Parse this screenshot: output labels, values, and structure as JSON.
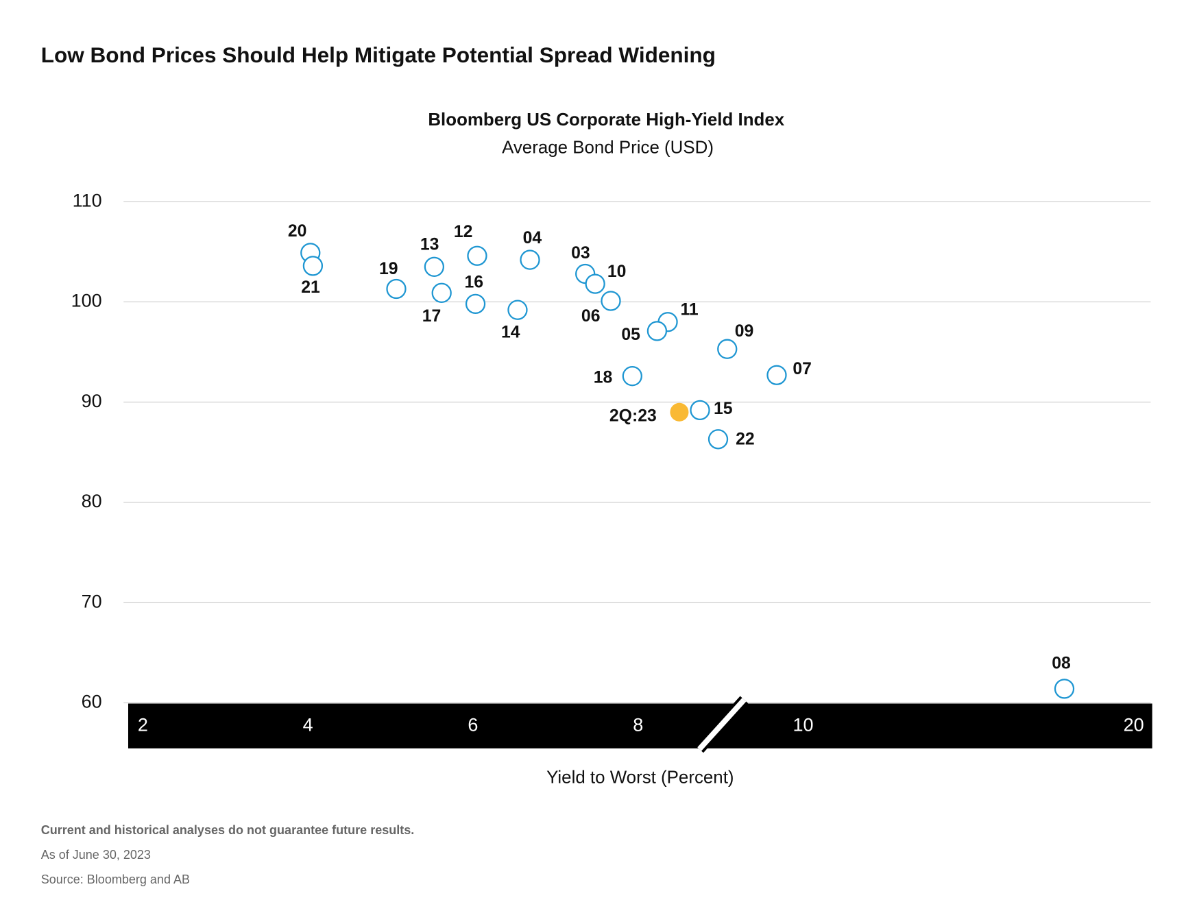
{
  "header": {
    "title": "Low Bond Prices Should Help Mitigate Potential Spread Widening"
  },
  "chart_data": {
    "type": "scatter",
    "title": "Bloomberg US Corporate High-Yield Index",
    "subtitle": "Average Bond Price (USD)",
    "xlabel": "Yield to Worst (Percent)",
    "xlim": [
      2,
      20
    ],
    "x_break": [
      12,
      18
    ],
    "xticks": [
      2,
      4,
      6,
      8,
      10,
      20
    ],
    "ylim": [
      60,
      110
    ],
    "yticks": [
      60,
      70,
      80,
      90,
      100,
      110
    ],
    "grid": true,
    "series": [
      {
        "color": "#1e96d2",
        "marker": "open",
        "labels": [
          "20",
          "21",
          "19",
          "13",
          "17",
          "12",
          "16",
          "14",
          "04",
          "03",
          "10",
          "06",
          "11",
          "05",
          "18",
          "09",
          "07",
          "15",
          "22",
          "08"
        ],
        "x": [
          4.03,
          4.06,
          5.07,
          5.53,
          5.62,
          6.05,
          6.03,
          6.54,
          6.69,
          7.36,
          7.48,
          7.67,
          8.36,
          8.23,
          7.93,
          9.08,
          9.68,
          8.75,
          8.97,
          19.16
        ],
        "y": [
          104.9,
          103.6,
          101.3,
          103.5,
          100.9,
          104.6,
          99.8,
          99.2,
          104.2,
          102.8,
          101.8,
          100.1,
          98.0,
          97.1,
          92.6,
          95.3,
          92.7,
          89.2,
          86.3,
          61.4
        ]
      },
      {
        "color": "#f9b934",
        "marker": "filled",
        "labels": [
          "2Q:23"
        ],
        "x": [
          8.5
        ],
        "y": [
          89.0
        ]
      }
    ]
  },
  "footer": {
    "notes": [
      "Current and historical analyses do not guarantee future results.",
      "As of June 30, 2023",
      "Source: Bloomberg and AB"
    ]
  }
}
